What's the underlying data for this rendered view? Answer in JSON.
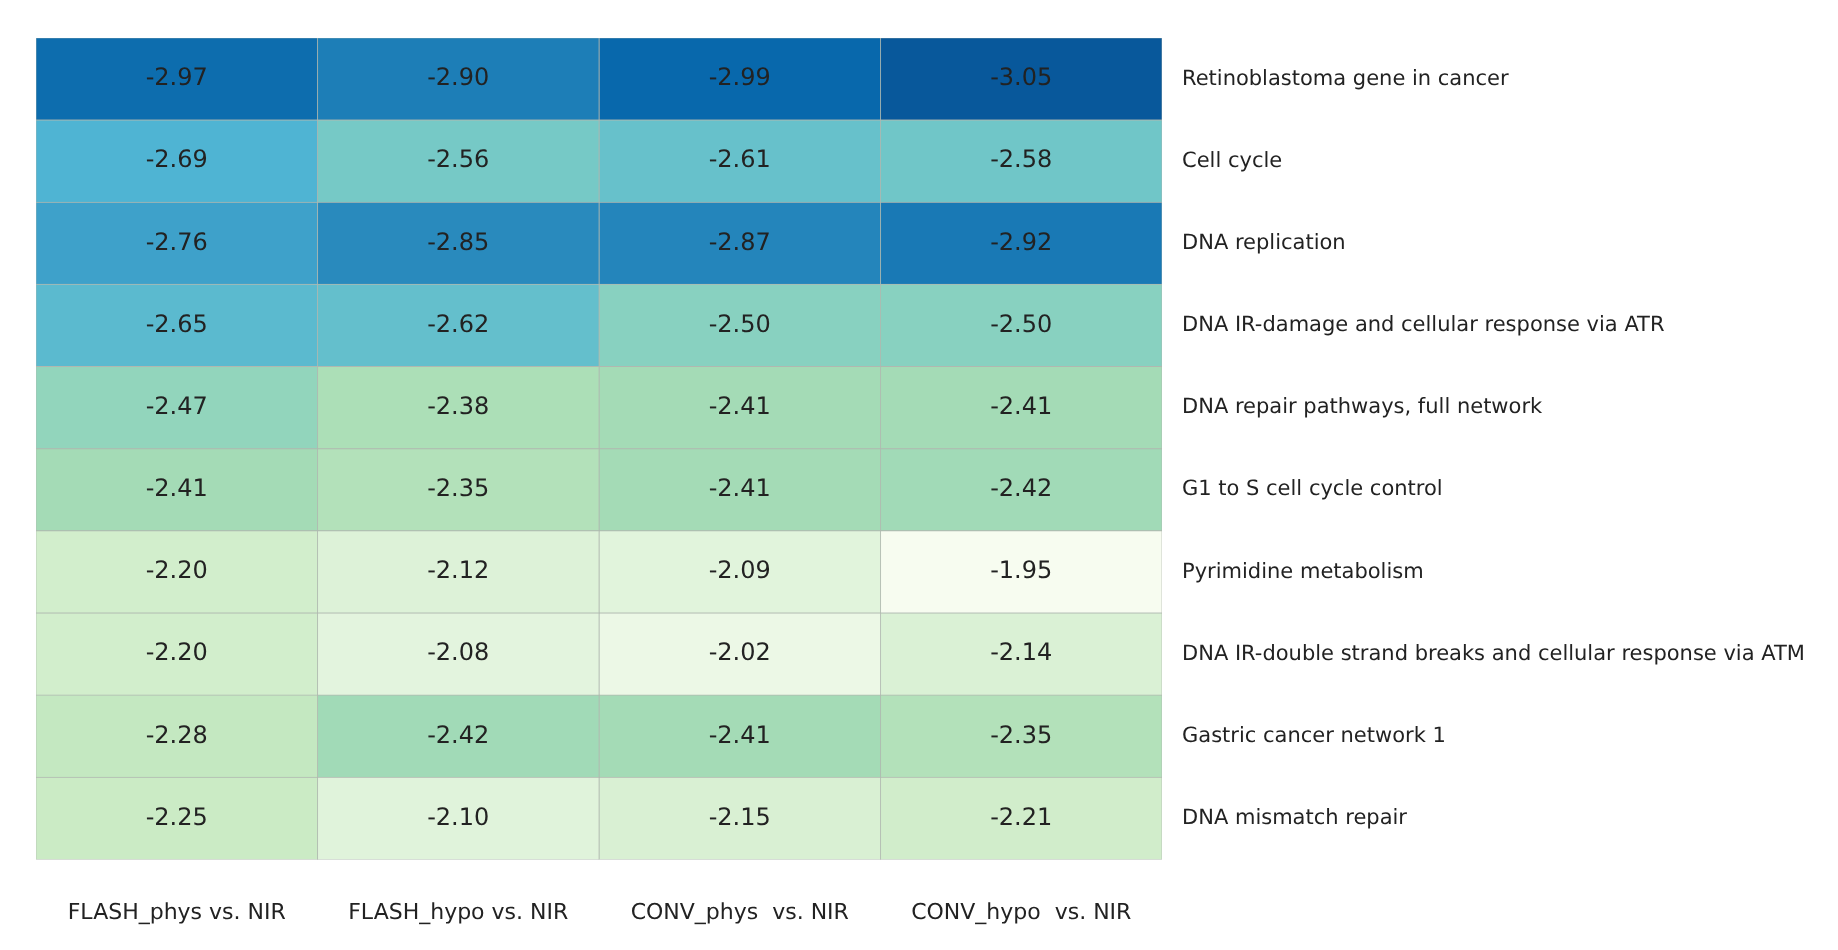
{
  "chart_data": {
    "type": "heatmap",
    "categories": [
      "FLASH_phys vs. NIR",
      "FLASH_hypo vs. NIR",
      "CONV_phys  vs. NIR",
      "CONV_hypo  vs. NIR"
    ],
    "y_categories": [
      "Retinoblastoma gene in cancer",
      "Cell cycle",
      "DNA replication",
      "DNA IR-damage and cellular response via ATR",
      "DNA repair pathways, full network",
      "G1 to S cell cycle control",
      "Pyrimidine metabolism",
      "DNA IR-double strand breaks and cellular response via ATM",
      "Gastric cancer network 1",
      "DNA mismatch repair"
    ],
    "cells": [
      [
        -2.97,
        -2.9,
        -2.99,
        -3.05
      ],
      [
        -2.69,
        -2.56,
        -2.61,
        -2.58
      ],
      [
        -2.76,
        -2.85,
        -2.87,
        -2.92
      ],
      [
        -2.65,
        -2.62,
        -2.5,
        -2.5
      ],
      [
        -2.47,
        -2.38,
        -2.41,
        -2.41
      ],
      [
        -2.41,
        -2.35,
        -2.41,
        -2.42
      ],
      [
        -2.2,
        -2.12,
        -2.09,
        -1.95
      ],
      [
        -2.2,
        -2.08,
        -2.02,
        -2.14
      ],
      [
        -2.28,
        -2.42,
        -2.41,
        -2.35
      ],
      [
        -2.25,
        -2.1,
        -2.15,
        -2.21
      ]
    ],
    "cell_labels": [
      [
        "-2.97",
        "-2.90",
        "-2.99",
        "-3.05"
      ],
      [
        "-2.69",
        "-2.56",
        "-2.61",
        "-2.58"
      ],
      [
        "-2.76",
        "-2.85",
        "-2.87",
        "-2.92"
      ],
      [
        "-2.65",
        "-2.62",
        "-2.50",
        "-2.50"
      ],
      [
        "-2.47",
        "-2.38",
        "-2.41",
        "-2.41"
      ],
      [
        "-2.41",
        "-2.35",
        "-2.41",
        "-2.42"
      ],
      [
        "-2.20",
        "-2.12",
        "-2.09",
        "-1.95"
      ],
      [
        "-2.20",
        "-2.08",
        "-2.02",
        "-2.14"
      ],
      [
        "-2.28",
        "-2.42",
        "-2.41",
        "-2.35"
      ],
      [
        "-2.25",
        "-2.10",
        "-2.15",
        "-2.21"
      ]
    ]
  }
}
